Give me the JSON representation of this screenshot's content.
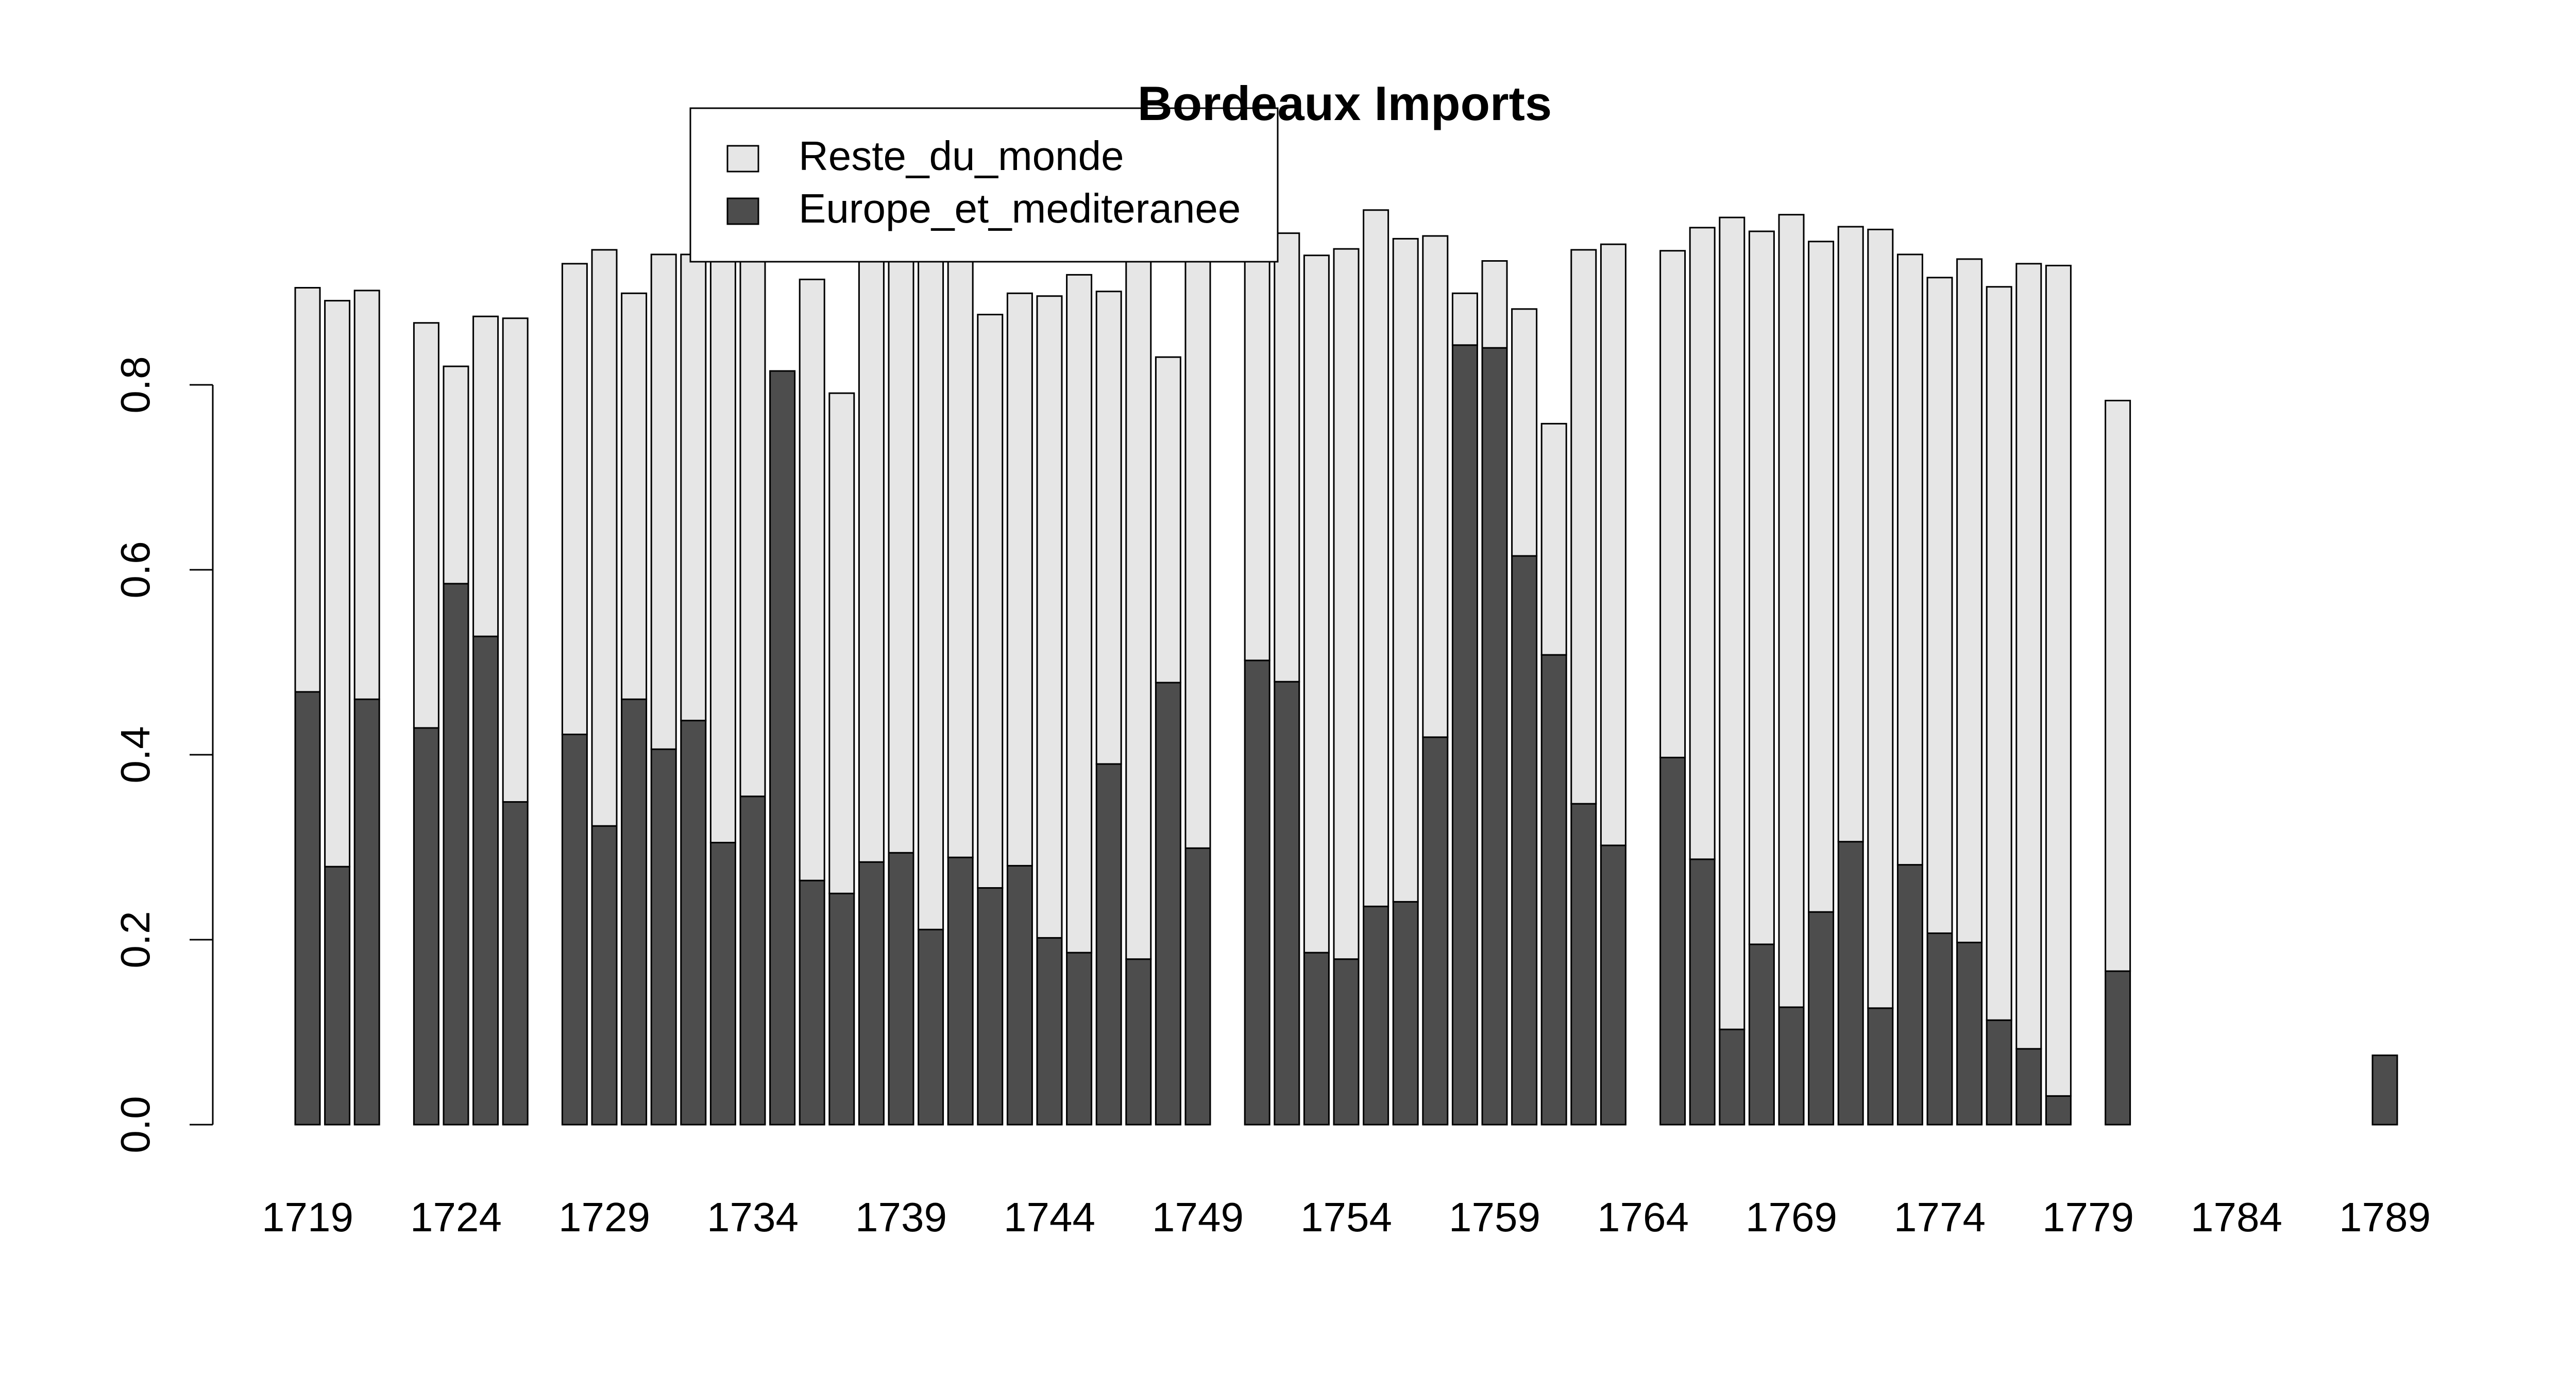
{
  "chart_data": {
    "type": "bar",
    "stacked": true,
    "title": "Bordeaux Imports",
    "xlabel": "",
    "ylabel": "",
    "ylim": [
      0,
      1
    ],
    "yticks": [
      "0.0",
      "0.2",
      "0.4",
      "0.6",
      "0.8"
    ],
    "xtick_labels": [
      "1719",
      "1724",
      "1729",
      "1734",
      "1739",
      "1744",
      "1749",
      "1754",
      "1759",
      "1764",
      "1769",
      "1774",
      "1779",
      "1784",
      "1789"
    ],
    "legend_position": "top",
    "colors": {
      "Reste_du_monde": "#e6e6e6",
      "Europe_et_mediteranee": "#4d4d4d"
    },
    "categories": [
      1719,
      1720,
      1721,
      1722,
      1723,
      1724,
      1725,
      1726,
      1727,
      1728,
      1729,
      1730,
      1731,
      1732,
      1733,
      1734,
      1735,
      1736,
      1737,
      1738,
      1739,
      1740,
      1741,
      1742,
      1743,
      1744,
      1745,
      1746,
      1747,
      1748,
      1749,
      1750,
      1751,
      1752,
      1753,
      1754,
      1755,
      1756,
      1757,
      1758,
      1759,
      1760,
      1761,
      1762,
      1763,
      1764,
      1765,
      1766,
      1767,
      1768,
      1769,
      1770,
      1771,
      1772,
      1773,
      1774,
      1775,
      1776,
      1777,
      1778,
      1779,
      1780,
      1781,
      1782,
      1783,
      1784,
      1785,
      1786,
      1787,
      1788,
      1789
    ],
    "series": [
      {
        "name": "Europe_et_mediteranee",
        "values": [
          0.468,
          0.279,
          0.46,
          null,
          0.429,
          0.585,
          0.528,
          0.349,
          null,
          0.422,
          0.323,
          0.46,
          0.406,
          0.437,
          0.305,
          0.355,
          0.815,
          0.264,
          0.25,
          0.284,
          0.294,
          0.211,
          0.289,
          0.256,
          0.28,
          0.202,
          0.186,
          0.39,
          0.179,
          0.478,
          0.299,
          null,
          0.502,
          0.479,
          0.186,
          0.179,
          0.236,
          0.241,
          0.419,
          0.843,
          0.84,
          0.615,
          0.508,
          0.347,
          0.302,
          null,
          0.397,
          0.287,
          0.103,
          0.195,
          0.127,
          0.23,
          0.306,
          0.126,
          0.281,
          0.207,
          0.197,
          0.113,
          0.082,
          0.031,
          null,
          0.166,
          null,
          null,
          null,
          null,
          null,
          null,
          null,
          null,
          0.075
        ]
      },
      {
        "name": "Reste_du_monde",
        "values": [
          0.437,
          0.612,
          0.442,
          null,
          0.438,
          0.235,
          0.346,
          0.523,
          null,
          0.509,
          0.623,
          0.439,
          0.535,
          0.504,
          0.635,
          0.585,
          0.0,
          0.65,
          0.541,
          0.656,
          0.646,
          0.729,
          0.651,
          0.62,
          0.619,
          0.694,
          0.733,
          0.511,
          0.761,
          0.352,
          0.641,
          null,
          0.458,
          0.485,
          0.754,
          0.768,
          0.753,
          0.717,
          0.542,
          0.056,
          0.094,
          0.267,
          0.25,
          0.599,
          0.65,
          null,
          0.548,
          0.683,
          0.878,
          0.771,
          0.857,
          0.725,
          0.665,
          0.842,
          0.66,
          0.709,
          0.739,
          0.793,
          0.849,
          0.898,
          null,
          0.617,
          null,
          null,
          null,
          null,
          null,
          null,
          null,
          null,
          0.0
        ]
      }
    ]
  },
  "legend": {
    "items": [
      {
        "label": "Reste_du_monde"
      },
      {
        "label": "Europe_et_mediteranee"
      }
    ]
  }
}
